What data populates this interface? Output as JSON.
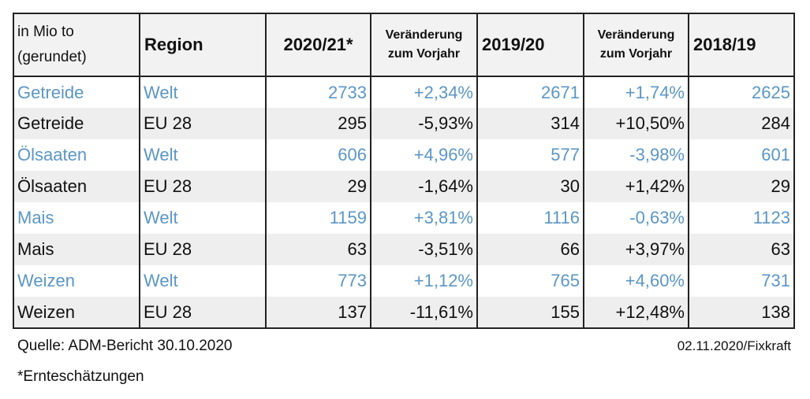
{
  "header": {
    "unit_line1": "in Mio to",
    "unit_line2": "(gerundet)",
    "region": "Region",
    "y1": "2020/21*",
    "change1_line1": "Veränderung",
    "change1_line2": "zum Vorjahr",
    "y2": "2019/20",
    "change2_line1": "Veränderung",
    "change2_line2": "zum Vorjahr",
    "y3": "2018/19"
  },
  "rows": [
    {
      "product": "Getreide",
      "region": "Welt",
      "y1": "2733",
      "c1": "+2,34%",
      "y2": "2671",
      "c2": "+1,74%",
      "y3": "2625"
    },
    {
      "product": "Getreide",
      "region": "EU 28",
      "y1": "295",
      "c1": "-5,93%",
      "y2": "314",
      "c2": "+10,50%",
      "y3": "284"
    },
    {
      "product": "Ölsaaten",
      "region": "Welt",
      "y1": "606",
      "c1": "+4,96%",
      "y2": "577",
      "c2": "-3,98%",
      "y3": "601"
    },
    {
      "product": "Ölsaaten",
      "region": "EU 28",
      "y1": "29",
      "c1": "-1,64%",
      "y2": "30",
      "c2": "+1,42%",
      "y3": "29"
    },
    {
      "product": "Mais",
      "region": "Welt",
      "y1": "1159",
      "c1": "+3,81%",
      "y2": "1116",
      "c2": "-0,63%",
      "y3": "1123"
    },
    {
      "product": "Mais",
      "region": "EU 28",
      "y1": "63",
      "c1": "-3,51%",
      "y2": "66",
      "c2": "+3,97%",
      "y3": "63"
    },
    {
      "product": "Weizen",
      "region": "Welt",
      "y1": "773",
      "c1": "+1,12%",
      "y2": "765",
      "c2": "+4,60%",
      "y3": "731"
    },
    {
      "product": "Weizen",
      "region": "EU 28",
      "y1": "137",
      "c1": "-11,61%",
      "y2": "155",
      "c2": "+12,48%",
      "y3": "138"
    }
  ],
  "footer": {
    "source": "Quelle: ADM-Bericht 30.10.2020",
    "date": "02.11.2020/Fixkraft",
    "note": "*Ernteschätzungen"
  },
  "colors": {
    "welt_text": "#5b96c6",
    "eu_text": "#111111",
    "row_stripe": "#eeeeee"
  }
}
